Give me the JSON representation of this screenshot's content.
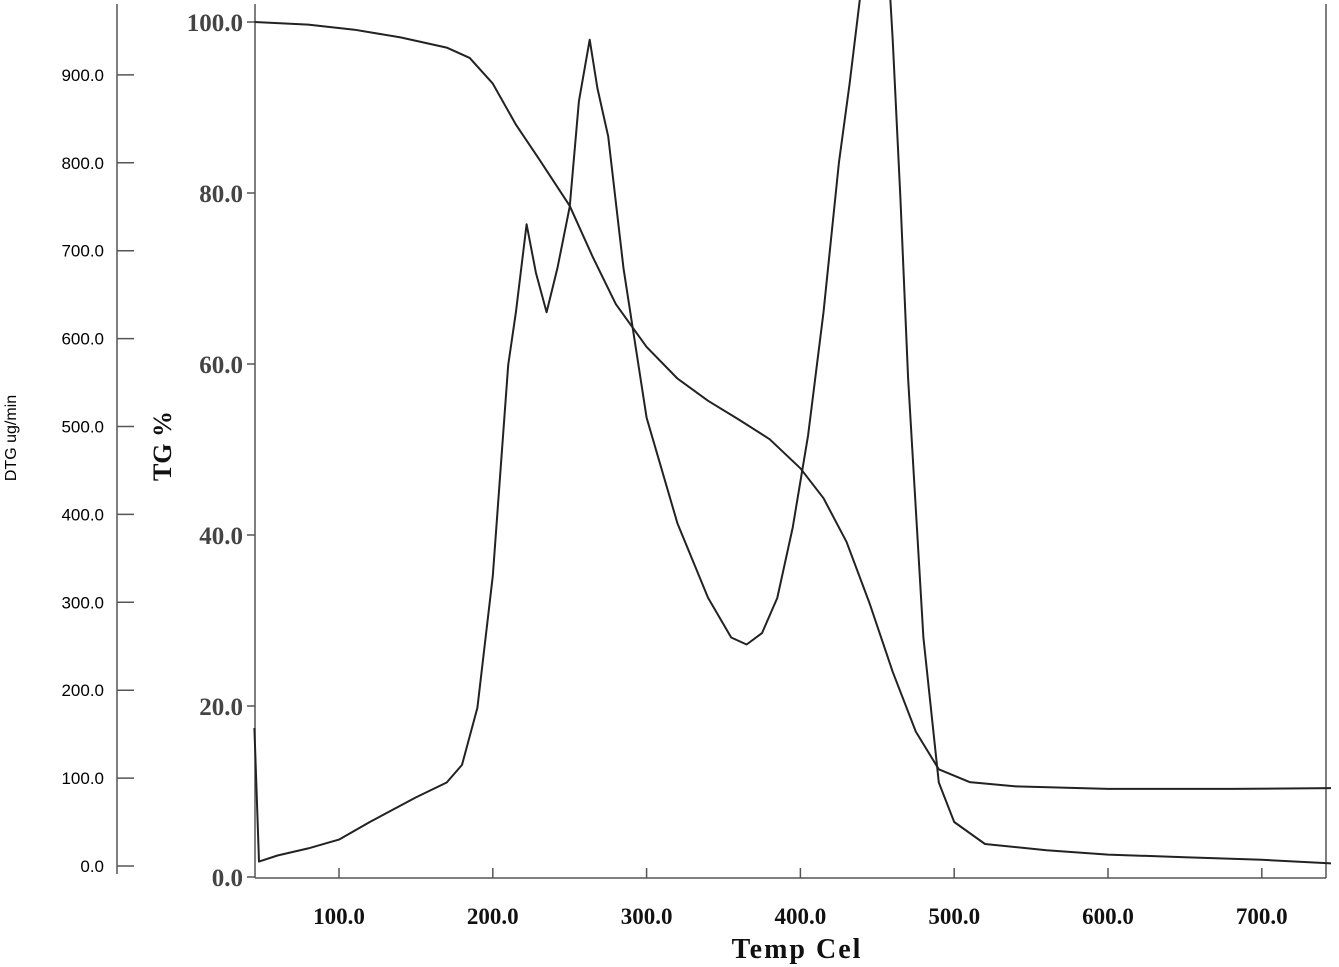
{
  "chart_data": {
    "type": "line",
    "xlabel": "Temp Cel",
    "y_left_label": "TG %",
    "y_right_label": "DTG ug/min",
    "x_ticks": [
      "100.0",
      "200.0",
      "300.0",
      "400.0",
      "500.0",
      "600.0",
      "700.0"
    ],
    "tg_ticks": [
      "0.0",
      "20.0",
      "40.0",
      "60.0",
      "80.0",
      "100.0"
    ],
    "dtg_ticks": [
      "0.0",
      "100.0",
      "200.0",
      "300.0",
      "400.0",
      "500.0",
      "600.0",
      "700.0",
      "800.0",
      "900.0"
    ],
    "xlim": [
      45,
      745
    ],
    "tg_ylim": [
      0,
      100
    ],
    "dtg_ylim": [
      0,
      1000
    ],
    "grid": false,
    "series": [
      {
        "axis": "tg",
        "x": [
          45,
          80,
          110,
          140,
          170,
          185,
          200,
          215,
          230,
          250,
          265,
          280,
          300,
          320,
          340,
          360,
          380,
          400,
          415,
          430,
          445,
          460,
          475,
          490,
          510,
          540,
          600,
          680,
          745
        ],
        "y": [
          100,
          99.7,
          99.1,
          98.2,
          97.0,
          95.8,
          92.8,
          88.0,
          84.0,
          78.5,
          72.5,
          67.0,
          62.0,
          58.3,
          55.7,
          53.5,
          51.2,
          47.8,
          44.3,
          39.2,
          32.0,
          24.0,
          17.0,
          12.6,
          11.1,
          10.6,
          10.3,
          10.3,
          10.4
        ]
      },
      {
        "axis": "dtg",
        "x": [
          45,
          48,
          60,
          80,
          100,
          120,
          150,
          170,
          180,
          190,
          200,
          210,
          215,
          222,
          228,
          235,
          242,
          250,
          256,
          263,
          268,
          275,
          285,
          300,
          320,
          340,
          355,
          365,
          375,
          385,
          395,
          405,
          415,
          425,
          432,
          440,
          446,
          451,
          455,
          460,
          465,
          470,
          480,
          490,
          500,
          520,
          560,
          600,
          650,
          700,
          745
        ],
        "y": [
          157,
          5,
          12,
          20,
          30,
          50,
          78,
          95,
          115,
          180,
          330,
          570,
          630,
          730,
          675,
          630,
          680,
          750,
          870,
          940,
          885,
          830,
          680,
          510,
          390,
          305,
          260,
          252,
          265,
          305,
          385,
          490,
          630,
          800,
          890,
          1005,
          1070,
          1120,
          1090,
          940,
          760,
          555,
          260,
          95,
          50,
          25,
          18,
          13,
          10,
          7,
          3
        ]
      }
    ]
  }
}
